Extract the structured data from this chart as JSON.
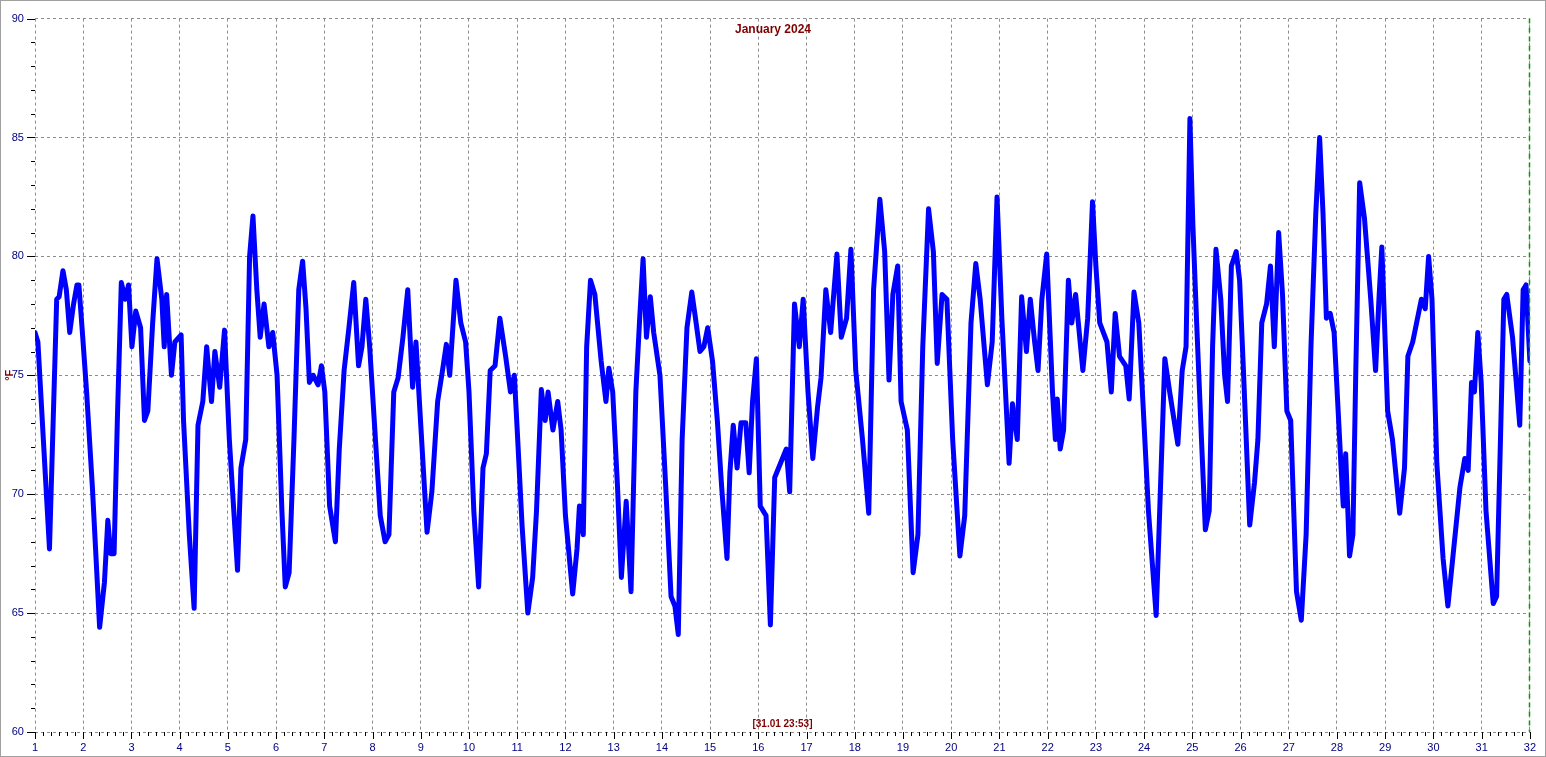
{
  "chart_data": {
    "type": "line",
    "title": "January 2024",
    "ylabel": "°F",
    "annotations": [
      "[31.01 23:53]"
    ],
    "x": [
      1,
      1.06,
      1.3,
      1.45,
      1.5,
      1.58,
      1.65,
      1.72,
      1.8,
      1.87,
      1.91,
      1.99,
      2.07,
      2.19,
      2.34,
      2.44,
      2.51,
      2.57,
      2.64,
      2.71,
      2.79,
      2.87,
      2.94,
      3.01,
      3.09,
      3.19,
      3.27,
      3.34,
      3.44,
      3.53,
      3.63,
      3.68,
      3.73,
      3.83,
      3.9,
      4.03,
      4.08,
      4.2,
      4.3,
      4.38,
      4.48,
      4.56,
      4.66,
      4.73,
      4.83,
      4.93,
      5.03,
      5.2,
      5.27,
      5.37,
      5.45,
      5.52,
      5.6,
      5.67,
      5.75,
      5.85,
      5.93,
      6.02,
      6.12,
      6.19,
      6.27,
      6.37,
      6.47,
      6.55,
      6.62,
      6.69,
      6.77,
      6.87,
      6.94,
      7.01,
      7.11,
      7.23,
      7.31,
      7.41,
      7.51,
      7.61,
      7.71,
      7.78,
      7.86,
      7.94,
      8.06,
      8.16,
      8.26,
      8.34,
      8.44,
      8.53,
      8.63,
      8.73,
      8.83,
      8.9,
      9,
      9.13,
      9.23,
      9.35,
      9.45,
      9.53,
      9.6,
      9.73,
      9.83,
      9.93,
      10,
      10.1,
      10.2,
      10.29,
      10.36,
      10.44,
      10.54,
      10.64,
      10.76,
      10.86,
      10.94,
      11,
      11.1,
      11.22,
      11.32,
      11.4,
      11.5,
      11.58,
      11.64,
      11.74,
      11.84,
      11.91,
      12,
      12.15,
      12.24,
      12.29,
      12.37,
      12.44,
      12.52,
      12.61,
      12.74,
      12.84,
      12.9,
      12.98,
      13.08,
      13.16,
      13.26,
      13.36,
      13.46,
      13.54,
      13.61,
      13.68,
      13.76,
      13.83,
      13.96,
      14.08,
      14.19,
      14.27,
      14.34,
      14.42,
      14.52,
      14.62,
      14.69,
      14.79,
      14.87,
      14.95,
      15.05,
      15.15,
      15.24,
      15.35,
      15.41,
      15.48,
      15.56,
      15.64,
      15.74,
      15.81,
      15.88,
      15.96,
      16.04,
      16.16,
      16.25,
      16.34,
      16.46,
      16.58,
      16.65,
      16.75,
      16.85,
      16.93,
      17.03,
      17.13,
      17.23,
      17.3,
      17.4,
      17.5,
      17.63,
      17.72,
      17.83,
      17.92,
      18.02,
      18.16,
      18.29,
      18.39,
      18.52,
      18.62,
      18.71,
      18.79,
      18.89,
      18.96,
      19.09,
      19.21,
      19.31,
      19.41,
      19.53,
      19.63,
      19.71,
      19.81,
      19.91,
      20.03,
      20.18,
      20.28,
      20.41,
      20.51,
      20.6,
      20.75,
      20.85,
      20.95,
      21.05,
      21.2,
      21.27,
      21.37,
      21.46,
      21.56,
      21.64,
      21.73,
      21.8,
      21.88,
      21.98,
      22.1,
      22.16,
      22.2,
      22.26,
      22.33,
      22.43,
      22.5,
      22.58,
      22.73,
      22.83,
      22.93,
      23,
      23.08,
      23.23,
      23.32,
      23.4,
      23.49,
      23.62,
      23.69,
      23.79,
      23.89,
      23.99,
      24.09,
      24.25,
      24.34,
      24.43,
      24.53,
      24.7,
      24.79,
      24.87,
      24.95,
      25.01,
      25.09,
      25.19,
      25.27,
      25.35,
      25.42,
      25.49,
      25.59,
      25.67,
      25.73,
      25.81,
      25.91,
      25.98,
      26.06,
      26.19,
      26.29,
      26.36,
      26.44,
      26.54,
      26.62,
      26.7,
      26.79,
      26.87,
      26.96,
      27.04,
      27.16,
      27.26,
      27.36,
      27.46,
      27.56,
      27.64,
      27.71,
      27.78,
      27.86,
      27.94,
      28.08,
      28.13,
      28.18,
      28.26,
      28.33,
      28.39,
      28.47,
      28.57,
      28.7,
      28.8,
      28.87,
      28.93,
      29.05,
      29.15,
      29.3,
      29.4,
      29.47,
      29.57,
      29.65,
      29.75,
      29.83,
      29.9,
      29.97,
      30.07,
      30.2,
      30.3,
      30.4,
      30.55,
      30.65,
      30.72,
      30.79,
      30.85,
      30.92,
      30.99,
      31.09,
      31.24,
      31.31,
      31.39,
      31.46,
      31.52,
      31.64,
      31.79,
      31.86,
      31.92,
      32
    ],
    "series": [
      {
        "color": "#0000ff",
        "values": [
          76.8,
          76.4,
          67.7,
          78.2,
          78.3,
          79.4,
          78.6,
          76.8,
          78,
          78.8,
          78.8,
          76.6,
          74.3,
          70.3,
          64.4,
          66.3,
          68.9,
          67.5,
          67.5,
          73.3,
          78.9,
          78.2,
          78.8,
          76.2,
          77.7,
          77,
          73.1,
          73.5,
          77.2,
          79.9,
          78.2,
          76.2,
          78.4,
          75,
          76.4,
          76.7,
          73.1,
          68.3,
          65.2,
          72.9,
          73.9,
          76.2,
          73.9,
          76,
          74.5,
          76.9,
          72.3,
          66.8,
          71.1,
          72.3,
          80,
          81.7,
          78.6,
          76.6,
          78,
          76.2,
          76.8,
          75,
          69.3,
          66.1,
          66.7,
          72.3,
          78.6,
          79.8,
          77.8,
          74.7,
          75,
          74.6,
          75.4,
          74.3,
          69.5,
          68,
          71.9,
          75.2,
          77,
          78.9,
          75.4,
          76.2,
          78.2,
          76.2,
          72.3,
          69.1,
          68,
          68.3,
          74.3,
          74.9,
          76.6,
          78.6,
          74.5,
          76.4,
          72.9,
          68.4,
          70.1,
          73.9,
          75.2,
          76.3,
          75,
          79,
          77.2,
          76.4,
          74.3,
          69.3,
          66.1,
          71.1,
          71.7,
          75.2,
          75.4,
          77.4,
          75.8,
          74.3,
          75,
          72.7,
          68.7,
          65,
          66.5,
          69.3,
          74.4,
          73.1,
          74.3,
          72.7,
          73.9,
          72.7,
          69.1,
          65.8,
          67.7,
          69.5,
          68.3,
          76.2,
          79,
          78.4,
          75.6,
          73.9,
          75.3,
          74.3,
          70.3,
          66.5,
          69.7,
          65.9,
          74.3,
          77.4,
          79.9,
          76.6,
          78.3,
          76.8,
          75,
          70.3,
          65.7,
          65.3,
          64.1,
          72.3,
          77,
          78.5,
          77.5,
          76,
          76.2,
          77,
          75.6,
          73.1,
          70.3,
          67.3,
          70.9,
          72.9,
          71.1,
          73,
          73,
          70.9,
          73.9,
          75.7,
          69.5,
          69.1,
          64.5,
          70.7,
          71.3,
          71.9,
          70.1,
          78,
          76.2,
          78.2,
          74.3,
          71.5,
          73.7,
          74.9,
          78.6,
          76.8,
          80.1,
          76.6,
          77.4,
          80.3,
          75.2,
          72.3,
          69.2,
          78.6,
          82.4,
          80.2,
          74.8,
          78.4,
          79.6,
          73.9,
          72.7,
          66.7,
          68.3,
          76.2,
          82,
          80.2,
          75.5,
          78.4,
          78.2,
          72.3,
          67.4,
          69.1,
          77.2,
          79.7,
          78.2,
          74.6,
          76.4,
          82.5,
          77.4,
          71.3,
          73.8,
          72.3,
          78.3,
          76,
          78.2,
          76.4,
          75.2,
          78.2,
          80.1,
          74.3,
          72.3,
          74,
          71.9,
          72.7,
          79,
          77.2,
          78.4,
          75.2,
          77.4,
          82.3,
          79.6,
          77.2,
          76.4,
          74.3,
          77.6,
          75.8,
          75.4,
          74,
          78.5,
          77.2,
          73.3,
          69.3,
          64.9,
          70.3,
          75.7,
          74.3,
          72.1,
          75.2,
          76.2,
          85.8,
          81.4,
          77.2,
          72.3,
          68.5,
          69.3,
          76.2,
          80.3,
          78.2,
          75,
          73.9,
          79.6,
          80.2,
          79,
          75.2,
          68.7,
          70.5,
          72.3,
          77.2,
          78,
          79.6,
          76.2,
          81,
          78.4,
          73.5,
          73.1,
          65.9,
          64.7,
          68.3,
          76.2,
          81.8,
          85,
          81.8,
          77.4,
          77.6,
          76.8,
          71.3,
          69.5,
          71.7,
          67.4,
          68.3,
          75.2,
          83.1,
          81.6,
          78.2,
          75.2,
          78.2,
          80.4,
          73.5,
          72.3,
          69.2,
          71.1,
          75.8,
          76.4,
          77.2,
          78.2,
          77.8,
          80,
          78.2,
          71.3,
          67.3,
          65.3,
          67.3,
          70.3,
          71.5,
          71,
          74.7,
          74.3,
          76.8,
          74.7,
          69.3,
          65.4,
          65.7,
          72.3,
          78.2,
          78.4,
          76.6,
          72.9,
          78.6,
          78.8,
          75.6
        ]
      }
    ],
    "xlim": [
      1,
      32
    ],
    "xticks": [
      1,
      {
        "value": 1.1667,
        "label": null
      },
      {
        "value": 1.3333,
        "label": null
      },
      {
        "value": 1.5,
        "label": null
      },
      {
        "value": 1.6667,
        "label": null
      },
      {
        "value": 1.8333,
        "label": null
      },
      2,
      {
        "value": 2.1667,
        "label": null
      },
      {
        "value": 2.3333,
        "label": null
      },
      {
        "value": 2.5,
        "label": null
      },
      {
        "value": 2.6667,
        "label": null
      },
      {
        "value": 2.8333,
        "label": null
      },
      3,
      {
        "value": 3.1667,
        "label": null
      },
      {
        "value": 3.3333,
        "label": null
      },
      {
        "value": 3.5,
        "label": null
      },
      {
        "value": 3.6667,
        "label": null
      },
      {
        "value": 3.8333,
        "label": null
      },
      4,
      {
        "value": 4.1667,
        "label": null
      },
      {
        "value": 4.3333,
        "label": null
      },
      {
        "value": 4.5,
        "label": null
      },
      {
        "value": 4.6667,
        "label": null
      },
      {
        "value": 4.8333,
        "label": null
      },
      5,
      {
        "value": 5.1667,
        "label": null
      },
      {
        "value": 5.3333,
        "label": null
      },
      {
        "value": 5.5,
        "label": null
      },
      {
        "value": 5.6667,
        "label": null
      },
      {
        "value": 5.8333,
        "label": null
      },
      6,
      {
        "value": 6.1667,
        "label": null
      },
      {
        "value": 6.3333,
        "label": null
      },
      {
        "value": 6.5,
        "label": null
      },
      {
        "value": 6.6667,
        "label": null
      },
      {
        "value": 6.8333,
        "label": null
      },
      7,
      {
        "value": 7.1667,
        "label": null
      },
      {
        "value": 7.3333,
        "label": null
      },
      {
        "value": 7.5,
        "label": null
      },
      {
        "value": 7.6667,
        "label": null
      },
      {
        "value": 7.8333,
        "label": null
      },
      8,
      {
        "value": 8.1667,
        "label": null
      },
      {
        "value": 8.3333,
        "label": null
      },
      {
        "value": 8.5,
        "label": null
      },
      {
        "value": 8.6667,
        "label": null
      },
      {
        "value": 8.8333,
        "label": null
      },
      9,
      {
        "value": 9.1667,
        "label": null
      },
      {
        "value": 9.3333,
        "label": null
      },
      {
        "value": 9.5,
        "label": null
      },
      {
        "value": 9.6667,
        "label": null
      },
      {
        "value": 9.8333,
        "label": null
      },
      10,
      {
        "value": 10.1667,
        "label": null
      },
      {
        "value": 10.3333,
        "label": null
      },
      {
        "value": 10.5,
        "label": null
      },
      {
        "value": 10.6667,
        "label": null
      },
      {
        "value": 10.8333,
        "label": null
      },
      11,
      {
        "value": 11.1667,
        "label": null
      },
      {
        "value": 11.3333,
        "label": null
      },
      {
        "value": 11.5,
        "label": null
      },
      {
        "value": 11.6667,
        "label": null
      },
      {
        "value": 11.8333,
        "label": null
      },
      12,
      {
        "value": 12.1667,
        "label": null
      },
      {
        "value": 12.3333,
        "label": null
      },
      {
        "value": 12.5,
        "label": null
      },
      {
        "value": 12.6667,
        "label": null
      },
      {
        "value": 12.8333,
        "label": null
      },
      13,
      {
        "value": 13.1667,
        "label": null
      },
      {
        "value": 13.3333,
        "label": null
      },
      {
        "value": 13.5,
        "label": null
      },
      {
        "value": 13.6667,
        "label": null
      },
      {
        "value": 13.8333,
        "label": null
      },
      14,
      {
        "value": 14.1667,
        "label": null
      },
      {
        "value": 14.3333,
        "label": null
      },
      {
        "value": 14.5,
        "label": null
      },
      {
        "value": 14.6667,
        "label": null
      },
      {
        "value": 14.8333,
        "label": null
      },
      15,
      {
        "value": 15.1667,
        "label": null
      },
      {
        "value": 15.3333,
        "label": null
      },
      {
        "value": 15.5,
        "label": null
      },
      {
        "value": 15.6667,
        "label": null
      },
      {
        "value": 15.8333,
        "label": null
      },
      16,
      {
        "value": 16.1667,
        "label": null
      },
      {
        "value": 16.3333,
        "label": null
      },
      {
        "value": 16.5,
        "label": null
      },
      {
        "value": 16.6667,
        "label": null
      },
      {
        "value": 16.8333,
        "label": null
      },
      17,
      {
        "value": 17.1667,
        "label": null
      },
      {
        "value": 17.3333,
        "label": null
      },
      {
        "value": 17.5,
        "label": null
      },
      {
        "value": 17.6667,
        "label": null
      },
      {
        "value": 17.8333,
        "label": null
      },
      18,
      {
        "value": 18.1667,
        "label": null
      },
      {
        "value": 18.3333,
        "label": null
      },
      {
        "value": 18.5,
        "label": null
      },
      {
        "value": 18.6667,
        "label": null
      },
      {
        "value": 18.8333,
        "label": null
      },
      19,
      {
        "value": 19.1667,
        "label": null
      },
      {
        "value": 19.3333,
        "label": null
      },
      {
        "value": 19.5,
        "label": null
      },
      {
        "value": 19.6667,
        "label": null
      },
      {
        "value": 19.8333,
        "label": null
      },
      20,
      {
        "value": 20.1667,
        "label": null
      },
      {
        "value": 20.3333,
        "label": null
      },
      {
        "value": 20.5,
        "label": null
      },
      {
        "value": 20.6667,
        "label": null
      },
      {
        "value": 20.8333,
        "label": null
      },
      21,
      {
        "value": 21.1667,
        "label": null
      },
      {
        "value": 21.3333,
        "label": null
      },
      {
        "value": 21.5,
        "label": null
      },
      {
        "value": 21.6667,
        "label": null
      },
      {
        "value": 21.8333,
        "label": null
      },
      22,
      {
        "value": 22.1667,
        "label": null
      },
      {
        "value": 22.3333,
        "label": null
      },
      {
        "value": 22.5,
        "label": null
      },
      {
        "value": 22.6667,
        "label": null
      },
      {
        "value": 22.8333,
        "label": null
      },
      23,
      {
        "value": 23.1667,
        "label": null
      },
      {
        "value": 23.3333,
        "label": null
      },
      {
        "value": 23.5,
        "label": null
      },
      {
        "value": 23.6667,
        "label": null
      },
      {
        "value": 23.8333,
        "label": null
      },
      24,
      {
        "value": 24.1667,
        "label": null
      },
      {
        "value": 24.3333,
        "label": null
      },
      {
        "value": 24.5,
        "label": null
      },
      {
        "value": 24.6667,
        "label": null
      },
      {
        "value": 24.8333,
        "label": null
      },
      25,
      {
        "value": 25.1667,
        "label": null
      },
      {
        "value": 25.3333,
        "label": null
      },
      {
        "value": 25.5,
        "label": null
      },
      {
        "value": 25.6667,
        "label": null
      },
      {
        "value": 25.8333,
        "label": null
      },
      26,
      {
        "value": 26.1667,
        "label": null
      },
      {
        "value": 26.3333,
        "label": null
      },
      {
        "value": 26.5,
        "label": null
      },
      {
        "value": 26.6667,
        "label": null
      },
      {
        "value": 26.8333,
        "label": null
      },
      27,
      {
        "value": 27.1667,
        "label": null
      },
      {
        "value": 27.3333,
        "label": null
      },
      {
        "value": 27.5,
        "label": null
      },
      {
        "value": 27.6667,
        "label": null
      },
      {
        "value": 27.8333,
        "label": null
      },
      28,
      {
        "value": 28.1667,
        "label": null
      },
      {
        "value": 28.3333,
        "label": null
      },
      {
        "value": 28.5,
        "label": null
      },
      {
        "value": 28.6667,
        "label": null
      },
      {
        "value": 28.8333,
        "label": null
      },
      29,
      {
        "value": 29.1667,
        "label": null
      },
      {
        "value": 29.3333,
        "label": null
      },
      {
        "value": 29.5,
        "label": null
      },
      {
        "value": 29.6667,
        "label": null
      },
      {
        "value": 29.8333,
        "label": null
      },
      30,
      {
        "value": 30.1667,
        "label": null
      },
      {
        "value": 30.3333,
        "label": null
      },
      {
        "value": 30.5,
        "label": null
      },
      {
        "value": 30.6667,
        "label": null
      },
      {
        "value": 30.8333,
        "label": null
      },
      31,
      {
        "value": 31.1667,
        "label": null
      },
      {
        "value": 31.3333,
        "label": null
      },
      {
        "value": 31.5,
        "label": null
      },
      {
        "value": 31.6667,
        "label": null
      },
      {
        "value": 31.8333,
        "label": null
      },
      32
    ],
    "ylim": [
      60,
      90
    ],
    "yticks": [
      60,
      {
        "value": 61,
        "label": null
      },
      {
        "value": 62,
        "label": null
      },
      {
        "value": 63,
        "label": null
      },
      {
        "value": 64,
        "label": null
      },
      65,
      {
        "value": 66,
        "label": null
      },
      {
        "value": 67,
        "label": null
      },
      {
        "value": 68,
        "label": null
      },
      {
        "value": 69,
        "label": null
      },
      70,
      {
        "value": 71,
        "label": null
      },
      {
        "value": 72,
        "label": null
      },
      {
        "value": 73,
        "label": null
      },
      {
        "value": 74,
        "label": null
      },
      75,
      {
        "value": 76,
        "label": null
      },
      {
        "value": 77,
        "label": null
      },
      {
        "value": 78,
        "label": null
      },
      {
        "value": 79,
        "label": null
      },
      80,
      {
        "value": 81,
        "label": null
      },
      {
        "value": 82,
        "label": null
      },
      {
        "value": 83,
        "label": null
      },
      {
        "value": 84,
        "label": null
      },
      85,
      {
        "value": 86,
        "label": null
      },
      {
        "value": 87,
        "label": null
      },
      {
        "value": 88,
        "label": null
      },
      {
        "value": 89,
        "label": null
      },
      90
    ],
    "grid": true,
    "ref_lines": [
      {
        "axis": "x",
        "value": 32,
        "color": "#00a000",
        "line_style": "dashed"
      }
    ]
  }
}
